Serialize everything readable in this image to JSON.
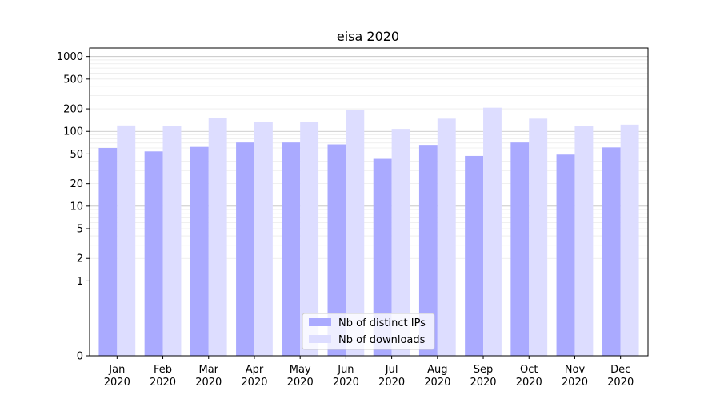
{
  "chart_data": {
    "type": "bar",
    "title": "eisa 2020",
    "xlabel": "",
    "ylabel": "",
    "yscale": "symlog",
    "ylim": [
      0,
      1300
    ],
    "yticks": [
      0,
      1,
      2,
      5,
      10,
      20,
      50,
      100,
      200,
      500,
      1000
    ],
    "categories": [
      [
        "Jan",
        "2020"
      ],
      [
        "Feb",
        "2020"
      ],
      [
        "Mar",
        "2020"
      ],
      [
        "Apr",
        "2020"
      ],
      [
        "May",
        "2020"
      ],
      [
        "Jun",
        "2020"
      ],
      [
        "Jul",
        "2020"
      ],
      [
        "Aug",
        "2020"
      ],
      [
        "Sep",
        "2020"
      ],
      [
        "Oct",
        "2020"
      ],
      [
        "Nov",
        "2020"
      ],
      [
        "Dec",
        "2020"
      ]
    ],
    "series": [
      {
        "name": "Nb of distinct IPs",
        "color": "#aaaaff",
        "values": [
          60,
          54,
          62,
          71,
          71,
          67,
          43,
          66,
          47,
          71,
          49,
          61
        ]
      },
      {
        "name": "Nb of downloads",
        "color": "#ddddff",
        "values": [
          120,
          118,
          151,
          133,
          133,
          191,
          108,
          148,
          207,
          148,
          118,
          123
        ]
      }
    ],
    "grid": true,
    "legend_position": "bottom-center"
  }
}
